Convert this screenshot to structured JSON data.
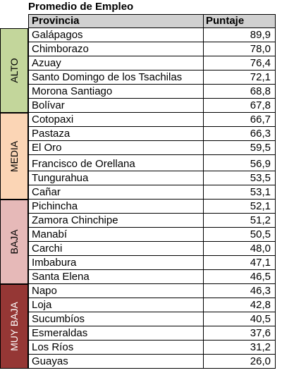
{
  "title": "Promedio de Empleo",
  "header": {
    "province": "Provincia",
    "score": "Puntaje"
  },
  "groups": [
    {
      "label": "ALTO",
      "color": "#c3d69b",
      "text_color": "#000000"
    },
    {
      "label": "MEDIA",
      "color": "#fbd5b5",
      "text_color": "#000000"
    },
    {
      "label": "BAJA",
      "color": "#e6b9b8",
      "text_color": "#000000"
    },
    {
      "label": "MUY BAJA",
      "color": "#953735",
      "text_color": "#ffffff"
    }
  ],
  "rows": [
    {
      "name": "Galápagos",
      "value": "89,9",
      "group": 0
    },
    {
      "name": "Chimborazo",
      "value": "78,0",
      "group": 0
    },
    {
      "name": "Azuay",
      "value": "76,4",
      "group": 0
    },
    {
      "name": "Santo Domingo de los Tsachilas",
      "value": "72,1",
      "group": 0
    },
    {
      "name": "Morona Santiago",
      "value": "68,8",
      "group": 0
    },
    {
      "name": "Bolívar",
      "value": "67,8",
      "group": 0
    },
    {
      "name": "Cotopaxi",
      "value": "66,7",
      "group": 1
    },
    {
      "name": "Pastaza",
      "value": "66,3",
      "group": 1
    },
    {
      "name": "El Oro",
      "value": "59,5",
      "group": 1
    },
    {
      "name": "Francisco de Orellana",
      "value": "56,9",
      "group": 1
    },
    {
      "name": "Tungurahua",
      "value": "53,5",
      "group": 1
    },
    {
      "name": "Cañar",
      "value": "53,1",
      "group": 1
    },
    {
      "name": "Pichincha",
      "value": "52,1",
      "group": 2
    },
    {
      "name": "Zamora Chinchipe",
      "value": "51,2",
      "group": 2
    },
    {
      "name": "Manabí",
      "value": "50,5",
      "group": 2
    },
    {
      "name": "Carchi",
      "value": "48,0",
      "group": 2
    },
    {
      "name": "Imbabura",
      "value": "47,1",
      "group": 2
    },
    {
      "name": "Santa Elena",
      "value": "46,5",
      "group": 2
    },
    {
      "name": "Napo",
      "value": "46,3",
      "group": 3
    },
    {
      "name": "Loja",
      "value": "42,8",
      "group": 3
    },
    {
      "name": "Sucumbíos",
      "value": "40,5",
      "group": 3
    },
    {
      "name": "Esmeraldas",
      "value": "37,6",
      "group": 3
    },
    {
      "name": "Los Ríos",
      "value": "31,2",
      "group": 3
    },
    {
      "name": "Guayas",
      "value": "26,0",
      "group": 3
    }
  ]
}
